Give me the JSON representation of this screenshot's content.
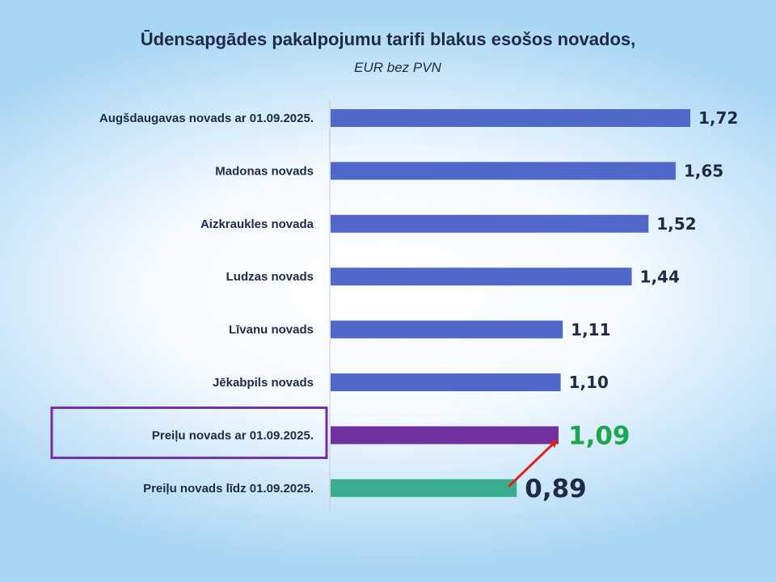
{
  "slide": {
    "title": "Ūdensapgādes pakalpojumu tarifi blakus esošos novados,",
    "subtitle": "EUR bez PVN"
  },
  "colors": {
    "default_bar": "#4f68c9",
    "highlight_bar": "#7030a0",
    "old_bar": "#39ae8c",
    "highlight_label": "#1ea64f",
    "label_text": "#1f2a44",
    "arrow": "#e02020",
    "frame": "#7030a0"
  },
  "chart_data": {
    "type": "bar",
    "orientation": "horizontal",
    "categories": [
      "Augšdaugavas novads ar 01.09.2025.",
      "Madonas novads",
      "Aizkraukles novada",
      "Ludzas novads",
      "Līvanu novads",
      "Jēkabpils novads",
      "Preiļu novads ar 01.09.2025.",
      "Preiļu novads līdz 01.09.2025."
    ],
    "values": [
      1.72,
      1.65,
      1.52,
      1.44,
      1.11,
      1.1,
      1.09,
      0.89
    ],
    "value_labels": [
      "1,72",
      "1,65",
      "1,52",
      "1,44",
      "1,11",
      "1,10",
      "1,09",
      "0,89"
    ],
    "bar_styles": [
      "default",
      "default",
      "default",
      "default",
      "default",
      "default",
      "highlight",
      "old"
    ],
    "highlighted_category": "Preiļu novads ar 01.09.2025.",
    "arrow": {
      "from": "Preiļu novads līdz 01.09.2025.",
      "to": "Preiļu novads ar 01.09.2025."
    },
    "xlim": [
      0,
      1.72
    ],
    "grid": false,
    "legend": "none"
  }
}
